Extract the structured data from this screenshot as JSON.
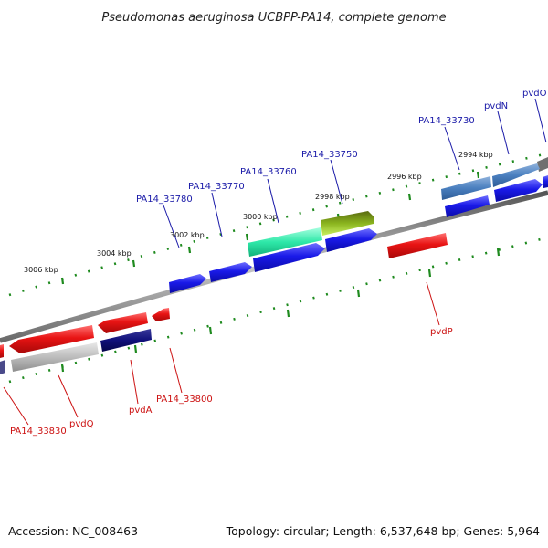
{
  "title": "Pseudomonas aeruginosa UCBPP-PA14, complete genome",
  "footer": {
    "accession": "Accession: NC_008463",
    "summary": "Topology: circular; Length: 6,537,648 bp; Genes: 5,964"
  },
  "kbp_labels": [
    "2994 kbp",
    "2996 kbp",
    "2998 kbp",
    "3000 kbp",
    "3002 kbp",
    "3004 kbp",
    "3006 kbp"
  ],
  "gene_labels_top": [
    "pvdO",
    "pvdN",
    "PA14_33730",
    "PA14_33750",
    "PA14_33760",
    "PA14_33770",
    "PA14_33780"
  ],
  "gene_labels_bottom": [
    "pvdP",
    "PA14_33800",
    "pvdA",
    "pvdQ",
    "PA14_33830"
  ],
  "colors": {
    "forward_gene": "#1515e6",
    "reverse_gene": "#e81414",
    "backbone": "#8c8c8c",
    "tick": "#1e8a1e",
    "label_forward": "#1a1aa8",
    "label_reverse": "#cc1111"
  }
}
